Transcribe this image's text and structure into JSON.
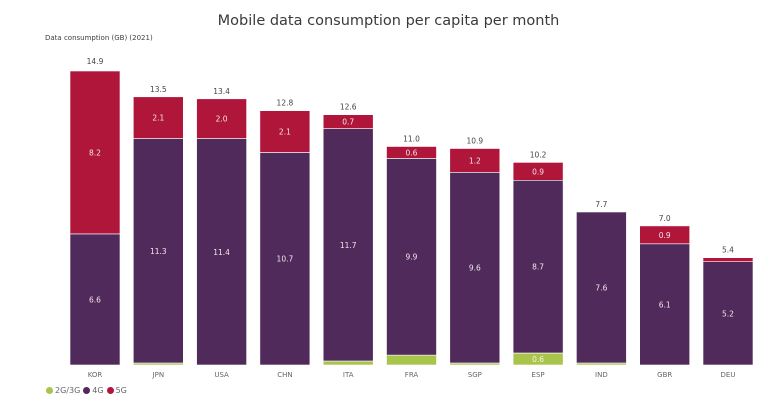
{
  "chart_data": {
    "type": "bar",
    "stacked": true,
    "title": "Mobile data consumption per capita per month",
    "ylabel": "Data consumption (GB) (2021)",
    "xlabel": "",
    "ylim": [
      0,
      14.9
    ],
    "grid": false,
    "legend_position": "bottom-left",
    "categories": [
      "KOR",
      "JPN",
      "USA",
      "CHN",
      "ITA",
      "FRA",
      "SGP",
      "ESP",
      "IND",
      "GBR",
      "DEU"
    ],
    "totals": [
      "14.9",
      "13.5",
      "13.4",
      "12.8",
      "12.6",
      "11.0",
      "10.9",
      "10.2",
      "7.7",
      "7.0",
      "5.4"
    ],
    "series": [
      {
        "name": "2G/3G",
        "color": "#a8c44a",
        "values": [
          0.0,
          0.1,
          0.0,
          0.0,
          0.2,
          0.5,
          0.1,
          0.6,
          0.1,
          0.0,
          0.0
        ],
        "labels": [
          "",
          "",
          "",
          "",
          "",
          "",
          "",
          "0.6",
          "",
          "",
          ""
        ]
      },
      {
        "name": "4G",
        "color": "#4f2a5a",
        "values": [
          6.6,
          11.3,
          11.4,
          10.7,
          11.7,
          9.9,
          9.6,
          8.7,
          7.6,
          6.1,
          5.2
        ],
        "labels": [
          "6.6",
          "11.3",
          "11.4",
          "10.7",
          "11.7",
          "9.9",
          "9.6",
          "8.7",
          "7.6",
          "6.1",
          "5.2"
        ]
      },
      {
        "name": "5G",
        "color": "#b0163a",
        "values": [
          8.2,
          2.1,
          2.0,
          2.1,
          0.7,
          0.6,
          1.2,
          0.9,
          0.0,
          0.9,
          0.2
        ],
        "labels": [
          "8.2",
          "2.1",
          "2.0",
          "2.1",
          "0.7",
          "0.6",
          "1.2",
          "0.9",
          "",
          "0.9",
          ""
        ]
      }
    ]
  }
}
